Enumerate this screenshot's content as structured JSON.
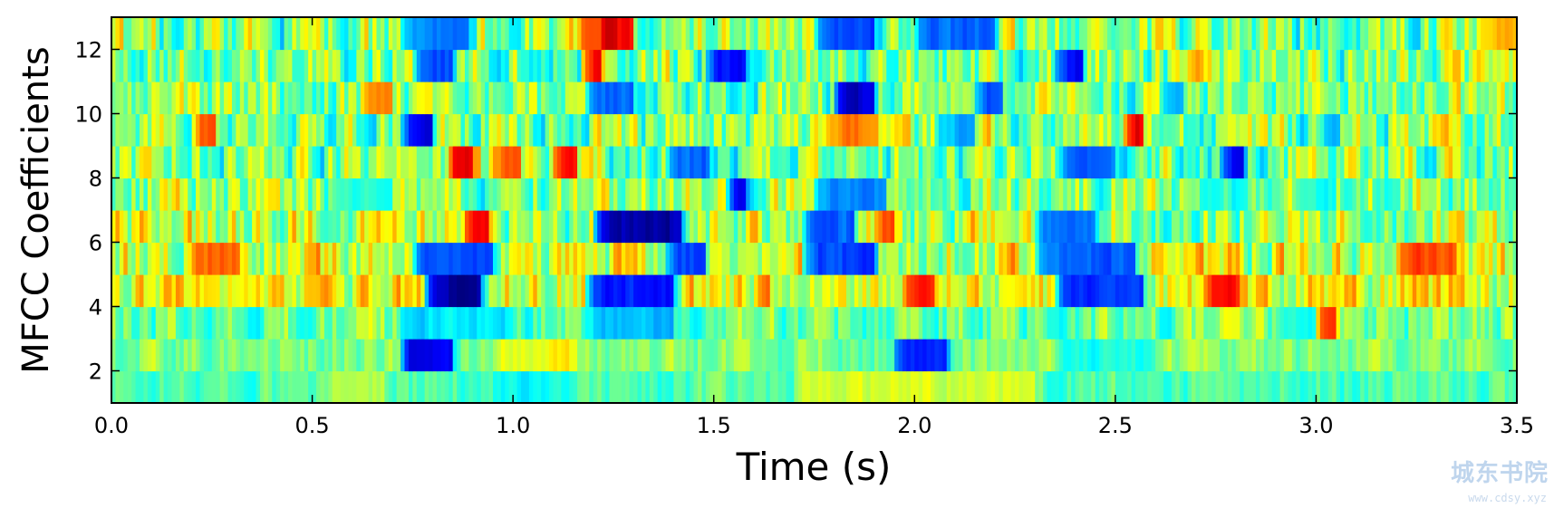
{
  "chart_data": {
    "type": "heatmap",
    "title": "",
    "xlabel": "Time (s)",
    "ylabel": "MFCC Coefficients",
    "xlim": [
      0.0,
      3.5
    ],
    "ylim": [
      1,
      13
    ],
    "xticks": [
      "0.0",
      "0.5",
      "1.0",
      "1.5",
      "2.0",
      "2.5",
      "3.0",
      "3.5"
    ],
    "yticks": [
      "2",
      "4",
      "6",
      "8",
      "10",
      "12"
    ],
    "colormap": "jet",
    "grid": false,
    "legend": "none",
    "n_coefficients": 12,
    "n_frames": 350,
    "rows": [
      {
        "coef": 1,
        "base": 0.45,
        "var": 0.1,
        "features": [
          [
            0.55,
            0.68,
            0.55
          ],
          [
            1.7,
            2.3,
            0.58
          ],
          [
            0.95,
            1.15,
            0.38
          ]
        ]
      },
      {
        "coef": 2,
        "base": 0.5,
        "var": 0.12,
        "features": [
          [
            0.72,
            0.85,
            0.08
          ],
          [
            1.95,
            2.08,
            0.15
          ],
          [
            2.35,
            2.6,
            0.4
          ],
          [
            0.95,
            1.15,
            0.62
          ]
        ]
      },
      {
        "coef": 3,
        "base": 0.48,
        "var": 0.18,
        "features": [
          [
            3.0,
            3.05,
            0.85
          ],
          [
            2.9,
            3.0,
            0.4
          ],
          [
            0.72,
            1.0,
            0.35
          ],
          [
            1.2,
            1.4,
            0.3
          ]
        ]
      },
      {
        "coef": 4,
        "base": 0.6,
        "var": 0.22,
        "features": [
          [
            0.78,
            0.92,
            0.02
          ],
          [
            1.18,
            1.4,
            0.15
          ],
          [
            1.97,
            2.05,
            0.88
          ],
          [
            2.35,
            2.57,
            0.18
          ],
          [
            2.72,
            2.8,
            0.85
          ]
        ]
      },
      {
        "coef": 5,
        "base": 0.58,
        "var": 0.24,
        "features": [
          [
            0.75,
            0.95,
            0.2
          ],
          [
            1.38,
            1.48,
            0.2
          ],
          [
            1.72,
            1.9,
            0.18
          ],
          [
            2.3,
            2.55,
            0.22
          ],
          [
            0.22,
            0.3,
            0.78
          ],
          [
            3.2,
            3.35,
            0.8
          ]
        ]
      },
      {
        "coef": 6,
        "base": 0.55,
        "var": 0.26,
        "features": [
          [
            1.2,
            1.42,
            0.05
          ],
          [
            1.72,
            1.85,
            0.22
          ],
          [
            2.3,
            2.45,
            0.25
          ],
          [
            0.88,
            0.94,
            0.88
          ],
          [
            1.9,
            1.95,
            0.82
          ]
        ]
      },
      {
        "coef": 7,
        "base": 0.52,
        "var": 0.24,
        "features": [
          [
            1.75,
            1.92,
            0.25
          ],
          [
            2.95,
            3.05,
            0.4
          ],
          [
            1.53,
            1.58,
            0.1
          ],
          [
            0.55,
            0.7,
            0.4
          ]
        ]
      },
      {
        "coef": 8,
        "base": 0.5,
        "var": 0.26,
        "features": [
          [
            0.84,
            0.9,
            0.92
          ],
          [
            0.94,
            1.02,
            0.78
          ],
          [
            1.1,
            1.16,
            0.88
          ],
          [
            1.38,
            1.48,
            0.22
          ],
          [
            2.35,
            2.5,
            0.25
          ],
          [
            2.76,
            2.82,
            0.12
          ]
        ]
      },
      {
        "coef": 9,
        "base": 0.5,
        "var": 0.26,
        "features": [
          [
            0.72,
            0.8,
            0.1
          ],
          [
            1.78,
            1.9,
            0.75
          ],
          [
            2.05,
            2.15,
            0.3
          ],
          [
            2.52,
            2.57,
            0.9
          ],
          [
            0.2,
            0.26,
            0.82
          ]
        ]
      },
      {
        "coef": 10,
        "base": 0.5,
        "var": 0.24,
        "features": [
          [
            1.8,
            1.9,
            0.08
          ],
          [
            0.62,
            0.7,
            0.78
          ],
          [
            1.18,
            1.3,
            0.22
          ],
          [
            2.15,
            2.22,
            0.2
          ]
        ]
      },
      {
        "coef": 11,
        "base": 0.5,
        "var": 0.26,
        "features": [
          [
            1.17,
            1.22,
            0.92
          ],
          [
            1.48,
            1.58,
            0.15
          ],
          [
            2.35,
            2.42,
            0.12
          ],
          [
            0.75,
            0.85,
            0.2
          ]
        ]
      },
      {
        "coef": 12,
        "base": 0.5,
        "var": 0.28,
        "features": [
          [
            1.17,
            1.3,
            0.85
          ],
          [
            1.22,
            1.26,
            0.95
          ],
          [
            1.75,
            1.9,
            0.18
          ],
          [
            2.0,
            2.2,
            0.22
          ],
          [
            0.72,
            0.88,
            0.25
          ],
          [
            3.4,
            3.5,
            0.72
          ]
        ]
      }
    ]
  },
  "watermark": {
    "text": "城东书院",
    "subtext": "www.cdsy.xyz"
  }
}
